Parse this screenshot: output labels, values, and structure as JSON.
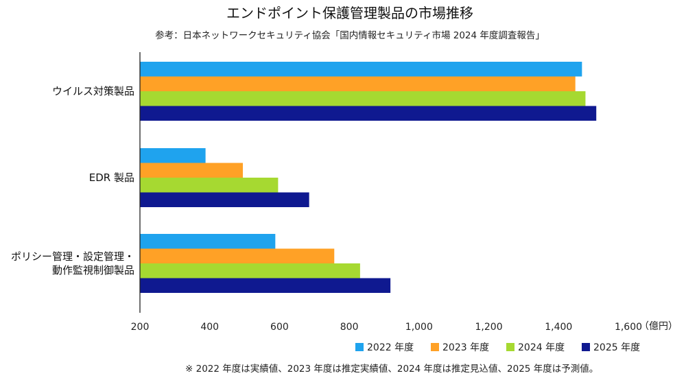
{
  "chart_data": {
    "type": "bar",
    "orientation": "horizontal",
    "title": "エンドポイント保護管理製品の市場推移",
    "subtitle": "参考：日本ネットワークセキュリティ協会「国内情報セキュリティ市場 2024 年度調査報告」",
    "categories": [
      [
        "ウイルス対策製品"
      ],
      [
        "EDR 製品"
      ],
      [
        "ポリシー管理・設定管理・",
        "動作監視制御製品"
      ]
    ],
    "series": [
      {
        "name": "2022 年度",
        "color": "#1fa3ee",
        "values": [
          1467,
          388,
          588
        ]
      },
      {
        "name": "2023 年度",
        "color": "#ffa126",
        "values": [
          1448,
          495,
          757
        ]
      },
      {
        "name": "2024 年度",
        "color": "#a6d931",
        "values": [
          1477,
          596,
          831
        ]
      },
      {
        "name": "2025 年度",
        "color": "#0f1990",
        "values": [
          1508,
          685,
          918
        ]
      }
    ],
    "xlim": [
      200,
      1600
    ],
    "xticks": [
      "200",
      "400",
      "600",
      "800",
      "1,000",
      "1,200",
      "1,400",
      "1,600"
    ],
    "xtick_values": [
      200,
      400,
      600,
      800,
      1000,
      1200,
      1400,
      1600
    ],
    "unit": "（億円）",
    "legend_position": "bottom-right",
    "grid": false,
    "note": "※ 2022 年度は実績値、2023 年度は推定実績値、2024 年度は推定見込値、2025 年度は予測値。"
  }
}
